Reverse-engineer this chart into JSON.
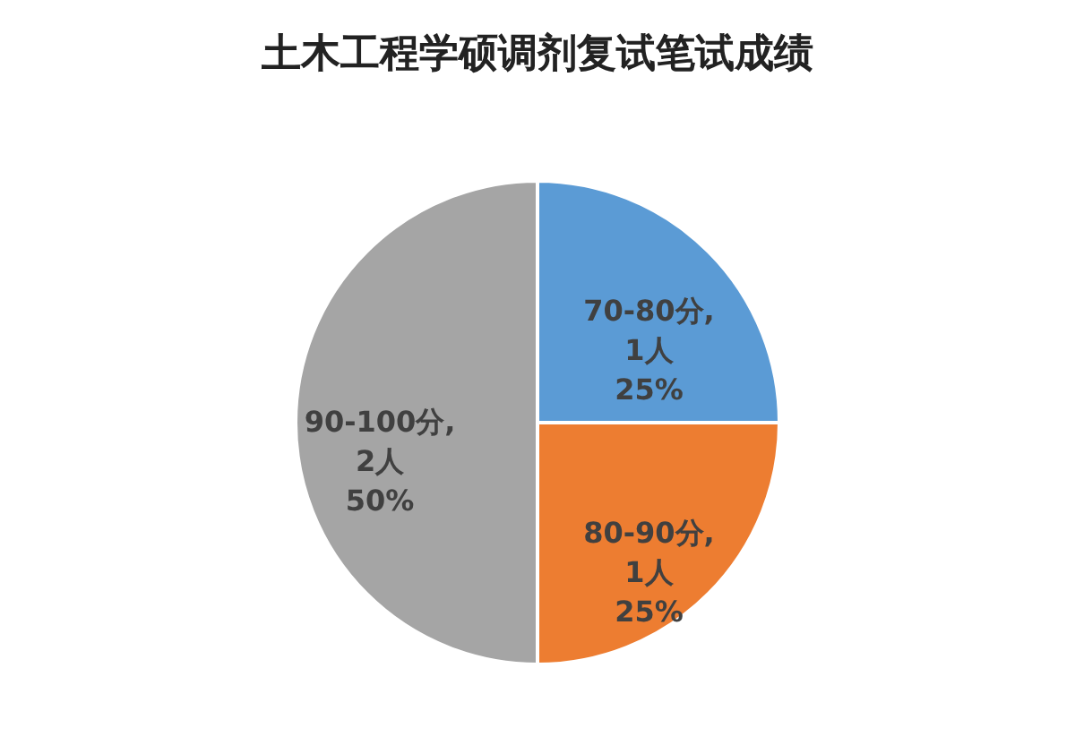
{
  "chart_data": {
    "type": "pie",
    "title": "土木工程学硕调剂复试笔试成绩",
    "categories": [
      "70-80分",
      "80-90分",
      "90-100分"
    ],
    "values": [
      1,
      1,
      2
    ],
    "value_labels": [
      ",\n1人\n25%",
      ",\n1人\n25%",
      ",\n2人\n50%"
    ],
    "colors": [
      "#5b9bd5",
      "#ed7d31",
      "#a5a5a5"
    ],
    "legend": false
  }
}
